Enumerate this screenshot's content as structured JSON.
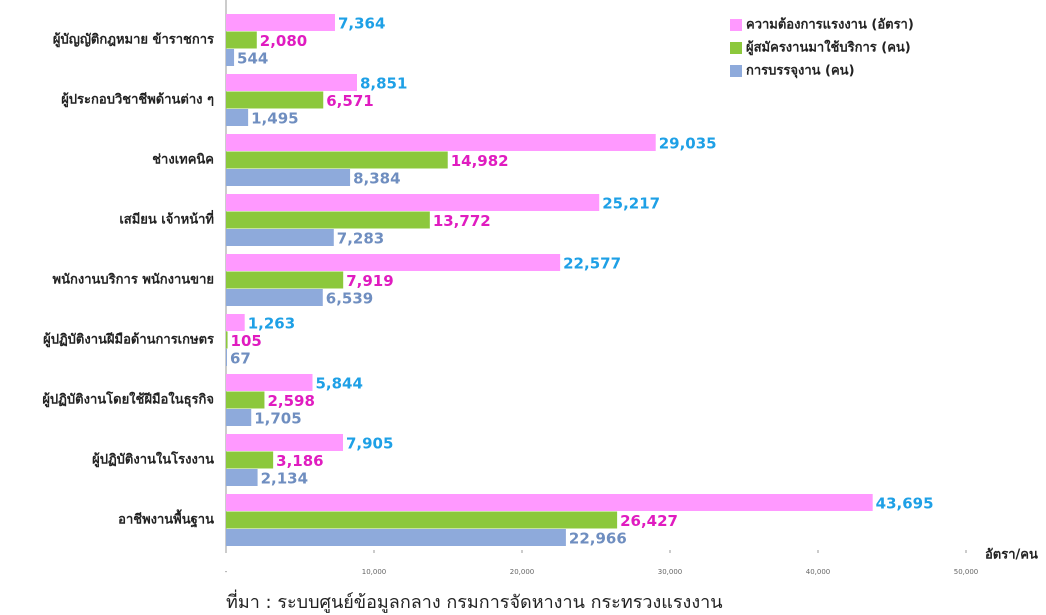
{
  "chart_data": {
    "type": "bar",
    "orientation": "horizontal",
    "categories": [
      "ผู้บัญญัติกฎหมาย ข้าราชการ",
      "ผู้ประกอบวิชาชีพด้านต่าง ๆ",
      "ช่างเทคนิค",
      "เสมียน  เจ้าหน้าที่",
      "พนักงานบริการ  พนักงานขาย",
      "ผู้ปฏิบัติงานฝีมือด้านการเกษตร",
      "ผู้ปฏิบัติงานโดยใช้ฝีมือในธุรกิจ",
      "ผู้ปฏิบัติงานในโรงงาน",
      "อาชีพงานพื้นฐาน"
    ],
    "series": [
      {
        "name": "ความต้องการแรงงาน (อัตรา)",
        "color": "#ff99ff",
        "label_color": "#1ea0e6",
        "values": [
          7364,
          8851,
          29035,
          25217,
          22577,
          1263,
          5844,
          7905,
          43695
        ],
        "value_labels": [
          "7,364",
          "8,851",
          "29,035",
          "25,217",
          "22,577",
          "1,263",
          "5,844",
          "7,905",
          "43,695"
        ]
      },
      {
        "name": "ผู้สมัครงานมาใช้บริการ (คน)",
        "color": "#8cc83c",
        "label_color": "#e01cc0",
        "values": [
          2080,
          6571,
          14982,
          13772,
          7919,
          105,
          2598,
          3186,
          26427
        ],
        "value_labels": [
          "2,080",
          "6,571",
          "14,982",
          "13,772",
          "7,919",
          "105",
          "2,598",
          "3,186",
          "26,427"
        ]
      },
      {
        "name": "การบรรจุงาน (คน)",
        "color": "#8eaadb",
        "label_color": "#6f8ec0",
        "values": [
          544,
          1495,
          8384,
          7283,
          6539,
          67,
          1705,
          2134,
          22966
        ],
        "value_labels": [
          "544",
          "1,495",
          "8,384",
          "7,283",
          "6,539",
          "67",
          "1,705",
          "2,134",
          "22,966"
        ]
      }
    ],
    "xlim": [
      0,
      50000
    ],
    "xticks": [
      {
        "value": 0,
        "label": "-"
      },
      {
        "value": 10000,
        "label": "10,000"
      },
      {
        "value": 20000,
        "label": "20,000"
      },
      {
        "value": 30000,
        "label": "30,000"
      },
      {
        "value": 40000,
        "label": "40,000"
      },
      {
        "value": 50000,
        "label": "50,000"
      }
    ],
    "xlabel": "อัตรา/คน",
    "source": "ที่มา : ระบบศูนย์ข้อมูลกลาง กรมการจัดหางาน กระทรวงแรงงาน",
    "legend": "top-right"
  }
}
